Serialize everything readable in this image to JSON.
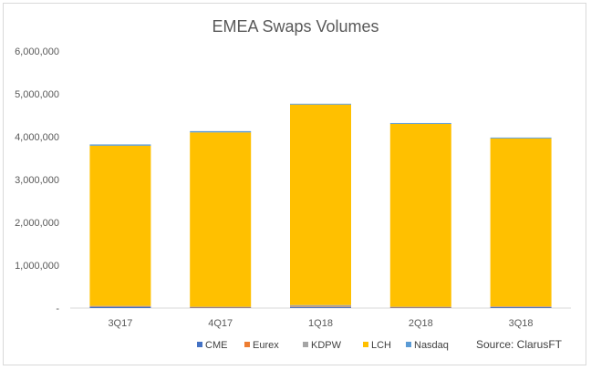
{
  "chart_data": {
    "type": "bar",
    "stacked": true,
    "title": "EMEA Swaps Volumes",
    "source": "Source: ClarusFT",
    "categories": [
      "3Q17",
      "4Q17",
      "1Q18",
      "2Q18",
      "3Q18"
    ],
    "ylim": [
      0,
      6000000
    ],
    "yticks": [
      0,
      1000000,
      2000000,
      3000000,
      4000000,
      5000000,
      6000000
    ],
    "ytick_labels": [
      "-",
      "1,000,000",
      "2,000,000",
      "3,000,000",
      "4,000,000",
      "5,000,000",
      "6,000,000"
    ],
    "grid": false,
    "legend_position": "bottom",
    "series": [
      {
        "name": "CME",
        "color": "#4472C4",
        "values": [
          30000,
          10000,
          20000,
          10000,
          20000
        ]
      },
      {
        "name": "Eurex",
        "color": "#ED7D31",
        "values": [
          10000,
          10000,
          10000,
          10000,
          10000
        ]
      },
      {
        "name": "KDPW",
        "color": "#A5A5A5",
        "values": [
          10000,
          10000,
          40000,
          10000,
          10000
        ]
      },
      {
        "name": "LCH",
        "color": "#FFC000",
        "values": [
          3740000,
          4070000,
          4680000,
          4270000,
          3920000
        ]
      },
      {
        "name": "Nasdaq",
        "color": "#5B9BD5",
        "values": [
          30000,
          30000,
          20000,
          20000,
          20000
        ]
      }
    ]
  }
}
